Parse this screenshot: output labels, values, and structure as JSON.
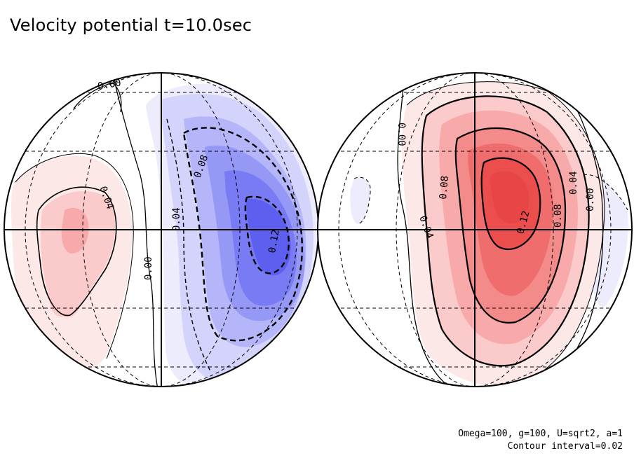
{
  "title": "Velocity potential t=10.0sec",
  "footer": {
    "params": "Omega=100, g=100, U=sqrt2, a=1",
    "contour_interval": "Contour interval=0.02"
  },
  "colors": {
    "negative_shades": [
      "#ececfd",
      "#d3d3fb",
      "#b5b6f9",
      "#9698f6",
      "#787bf3",
      "#5d60ef"
    ],
    "positive_shades": [
      "#fde8e8",
      "#fbcaca",
      "#f8aaaa",
      "#f48b8b",
      "#f06d6d",
      "#ec4e4e",
      "#e84646"
    ],
    "outline": "#000000",
    "graticule": "#000000"
  },
  "left_hemisphere": {
    "contour_labels": [
      "0.00",
      "0.04",
      "0.08",
      "0.04",
      "0.12",
      "0.00"
    ]
  },
  "right_hemisphere": {
    "contour_labels": [
      "0.00",
      "0.08",
      "0.04",
      "0.12",
      "0.08",
      "0.04",
      "0.00"
    ]
  }
}
